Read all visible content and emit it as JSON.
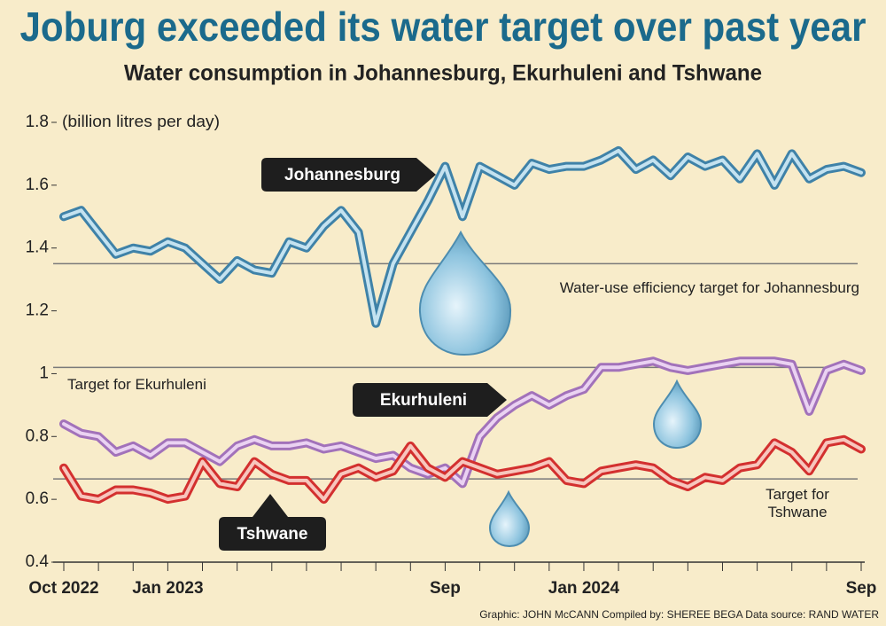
{
  "chart_data": {
    "type": "line",
    "title": "Joburg exceeded its water target over past year",
    "subtitle": "Water consumption in Johannesburg, Ekurhuleni and Tshwane",
    "y_label": "(billion litres per day)",
    "footer": "Graphic: JOHN McCANN  Compiled by: SHEREE BEGA  Data source: RAND WATER",
    "categories": [
      "Oct 2022",
      null,
      null,
      null,
      null,
      null,
      "Jan 2023",
      null,
      null,
      null,
      null,
      null,
      null,
      null,
      null,
      null,
      null,
      null,
      null,
      null,
      null,
      null,
      "Sep",
      null,
      null,
      null,
      null,
      null,
      null,
      null,
      "Jan 2024",
      null,
      null,
      null,
      null,
      null,
      null,
      null,
      null,
      null,
      null,
      null,
      null,
      null,
      null,
      null,
      "Sep"
    ],
    "series": [
      {
        "name": "Johannesburg",
        "color": "#3f82a8",
        "inner_color": "#c4e2f0",
        "values": [
          1.5,
          1.52,
          1.45,
          1.38,
          1.4,
          1.39,
          1.42,
          1.4,
          1.35,
          1.3,
          1.36,
          1.33,
          1.32,
          1.42,
          1.4,
          1.47,
          1.52,
          1.45,
          1.16,
          1.35,
          1.45,
          1.55,
          1.66,
          1.5,
          1.66,
          1.63,
          1.6,
          1.67,
          1.65,
          1.66,
          1.66,
          1.68,
          1.71,
          1.65,
          1.68,
          1.63,
          1.69,
          1.66,
          1.68,
          1.62,
          1.7,
          1.6,
          1.7,
          1.62,
          1.65,
          1.66,
          1.64
        ]
      },
      {
        "name": "Ekurhuleni",
        "color": "#a272ba",
        "inner_color": "#ead2f2",
        "values": [
          0.84,
          0.81,
          0.8,
          0.75,
          0.77,
          0.74,
          0.78,
          0.78,
          0.75,
          0.72,
          0.77,
          0.79,
          0.77,
          0.77,
          0.78,
          0.76,
          0.77,
          0.75,
          0.73,
          0.74,
          0.7,
          0.68,
          0.7,
          0.65,
          0.8,
          0.86,
          0.9,
          0.93,
          0.9,
          0.93,
          0.95,
          1.02,
          1.02,
          1.03,
          1.04,
          1.02,
          1.01,
          1.02,
          1.03,
          1.04,
          1.04,
          1.04,
          1.03,
          0.88,
          1.01,
          1.03,
          1.01
        ]
      },
      {
        "name": "Tshwane",
        "color": "#d3302f",
        "inner_color": "#f7c6bd",
        "values": [
          0.7,
          0.61,
          0.6,
          0.63,
          0.63,
          0.62,
          0.6,
          0.61,
          0.72,
          0.65,
          0.64,
          0.72,
          0.68,
          0.66,
          0.66,
          0.6,
          0.68,
          0.7,
          0.67,
          0.69,
          0.77,
          0.7,
          0.67,
          0.72,
          0.7,
          0.68,
          0.69,
          0.7,
          0.72,
          0.66,
          0.65,
          0.69,
          0.7,
          0.71,
          0.7,
          0.66,
          0.64,
          0.67,
          0.66,
          0.7,
          0.71,
          0.78,
          0.75,
          0.69,
          0.78,
          0.79,
          0.76
        ]
      }
    ],
    "reference_lines": [
      {
        "value": 1.35,
        "label": "Water-use efficiency target for Johannesburg"
      },
      {
        "value": 1.02,
        "label": "Target for Ekurhuleni"
      },
      {
        "value": 0.665,
        "label": "Target for Tshwane"
      }
    ],
    "ylim": [
      0.4,
      1.8
    ],
    "yticks": [
      0.4,
      0.6,
      0.8,
      1,
      1.2,
      1.4,
      1.6,
      1.8
    ]
  }
}
